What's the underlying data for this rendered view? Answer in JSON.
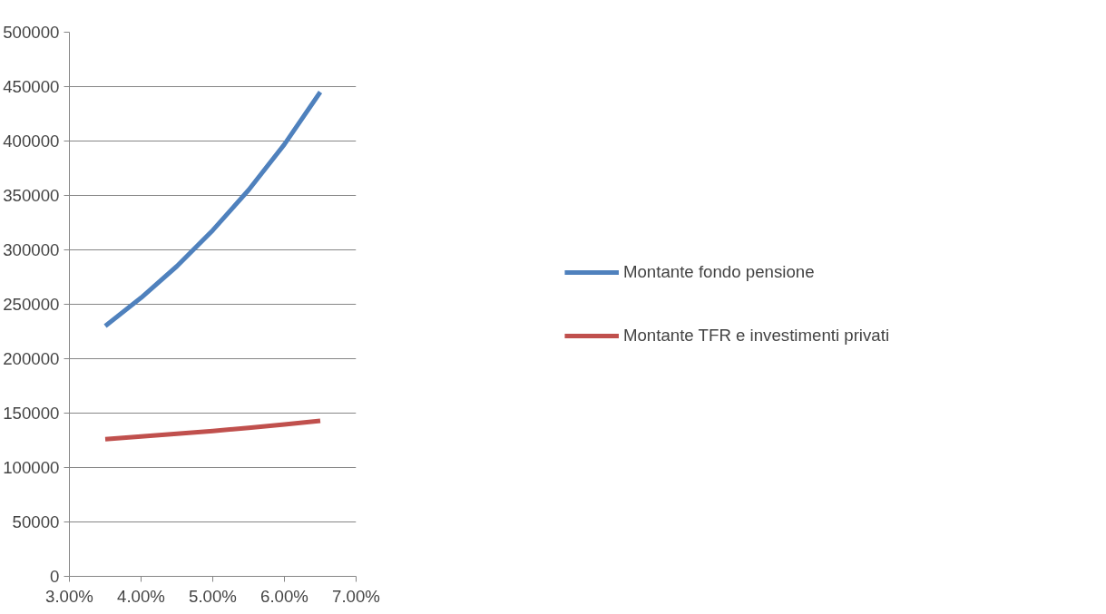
{
  "chart_data": {
    "type": "line",
    "x": [
      3.5,
      4.0,
      4.5,
      5.0,
      5.5,
      6.0,
      6.5
    ],
    "series": [
      {
        "name": "Montante fondo pensione",
        "color": "#4f81bd",
        "values": [
          230000,
          256000,
          285000,
          318000,
          355000,
          397000,
          445000
        ]
      },
      {
        "name": "Montante TFR e investimenti privati",
        "color": "#c0504d",
        "values": [
          126000,
          128500,
          131000,
          133500,
          136500,
          139500,
          143000
        ]
      }
    ],
    "xlim": [
      3.0,
      7.0
    ],
    "xticks": [
      {
        "value": 3.0,
        "label": "3.00%"
      },
      {
        "value": 4.0,
        "label": "4.00%"
      },
      {
        "value": 5.0,
        "label": "5.00%"
      },
      {
        "value": 6.0,
        "label": "6.00%"
      },
      {
        "value": 7.0,
        "label": "7.00%"
      }
    ],
    "ylim": [
      0,
      500000
    ],
    "yticks": [
      0,
      50000,
      100000,
      150000,
      200000,
      250000,
      300000,
      350000,
      400000,
      450000,
      500000
    ],
    "grid": "y",
    "legend": "right",
    "marker": "none",
    "line_style": "solid"
  }
}
